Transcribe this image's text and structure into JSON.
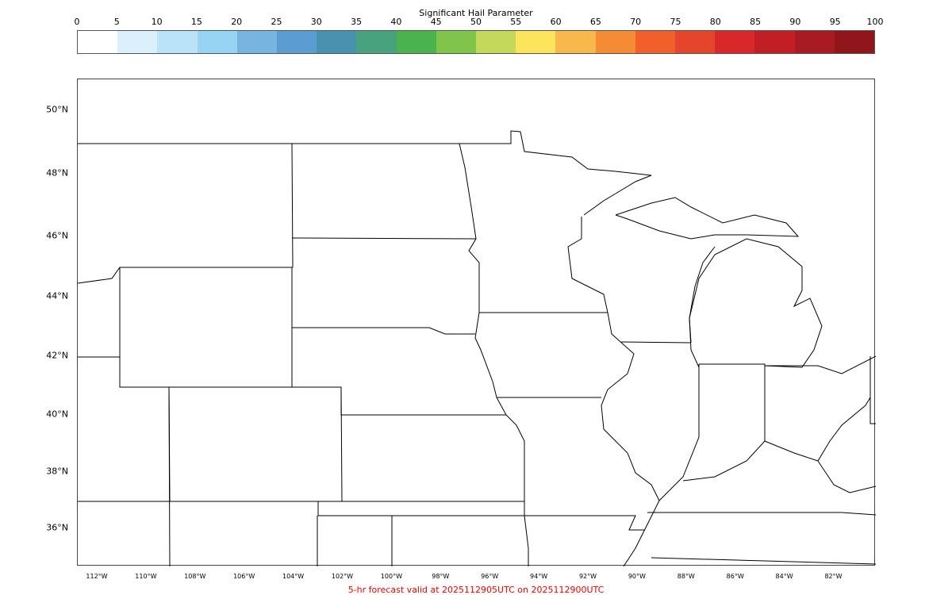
{
  "colorbar": {
    "title": "Significant Hail Parameter",
    "ticks": [
      "0",
      "5",
      "10",
      "15",
      "20",
      "25",
      "30",
      "35",
      "40",
      "45",
      "50",
      "55",
      "60",
      "65",
      "70",
      "75",
      "80",
      "85",
      "90",
      "95",
      "100"
    ],
    "colors": [
      "#ffffff",
      "#dcf0fc",
      "#bbe3f7",
      "#97d3f3",
      "#77b5e0",
      "#5b9cd3",
      "#4892b0",
      "#49a27e",
      "#4bb34e",
      "#81c44b",
      "#c4d95a",
      "#fce45c",
      "#f8b84b",
      "#f68b35",
      "#f1602b",
      "#e5462b",
      "#d9282a",
      "#c11e25",
      "#a91b22",
      "#91161c"
    ]
  },
  "map": {
    "lat_labels": [
      "50°N",
      "48°N",
      "46°N",
      "44°N",
      "42°N",
      "40°N",
      "38°N",
      "36°N"
    ],
    "lon_labels": [
      "112°W",
      "110°W",
      "108°W",
      "106°W",
      "104°W",
      "102°W",
      "100°W",
      "98°W",
      "96°W",
      "94°W",
      "92°W",
      "90°W",
      "88°W",
      "86°W",
      "84°W",
      "82°W"
    ]
  },
  "footer": {
    "text": "5-hr forecast valid at 2025112905UTC on 2025112900UTC",
    "color": "#ff0000"
  }
}
